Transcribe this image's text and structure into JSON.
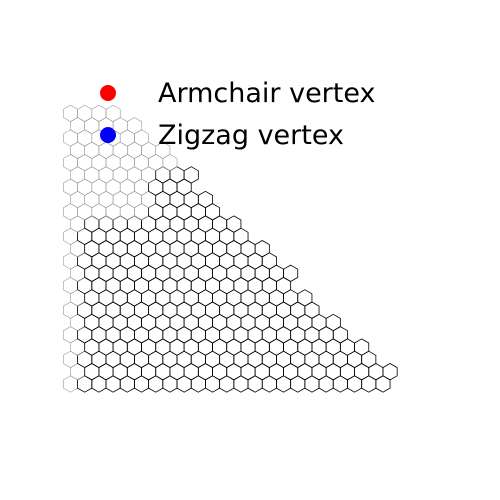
{
  "legend": {
    "items": [
      {
        "label": "Armchair vertex",
        "color": "#ff0000"
      },
      {
        "label": "Zigzag vertex",
        "color": "#0000ff"
      }
    ]
  },
  "colors": {
    "lattice_dark": "#000000",
    "lattice_light": "#999999",
    "background": "#ffffff"
  }
}
